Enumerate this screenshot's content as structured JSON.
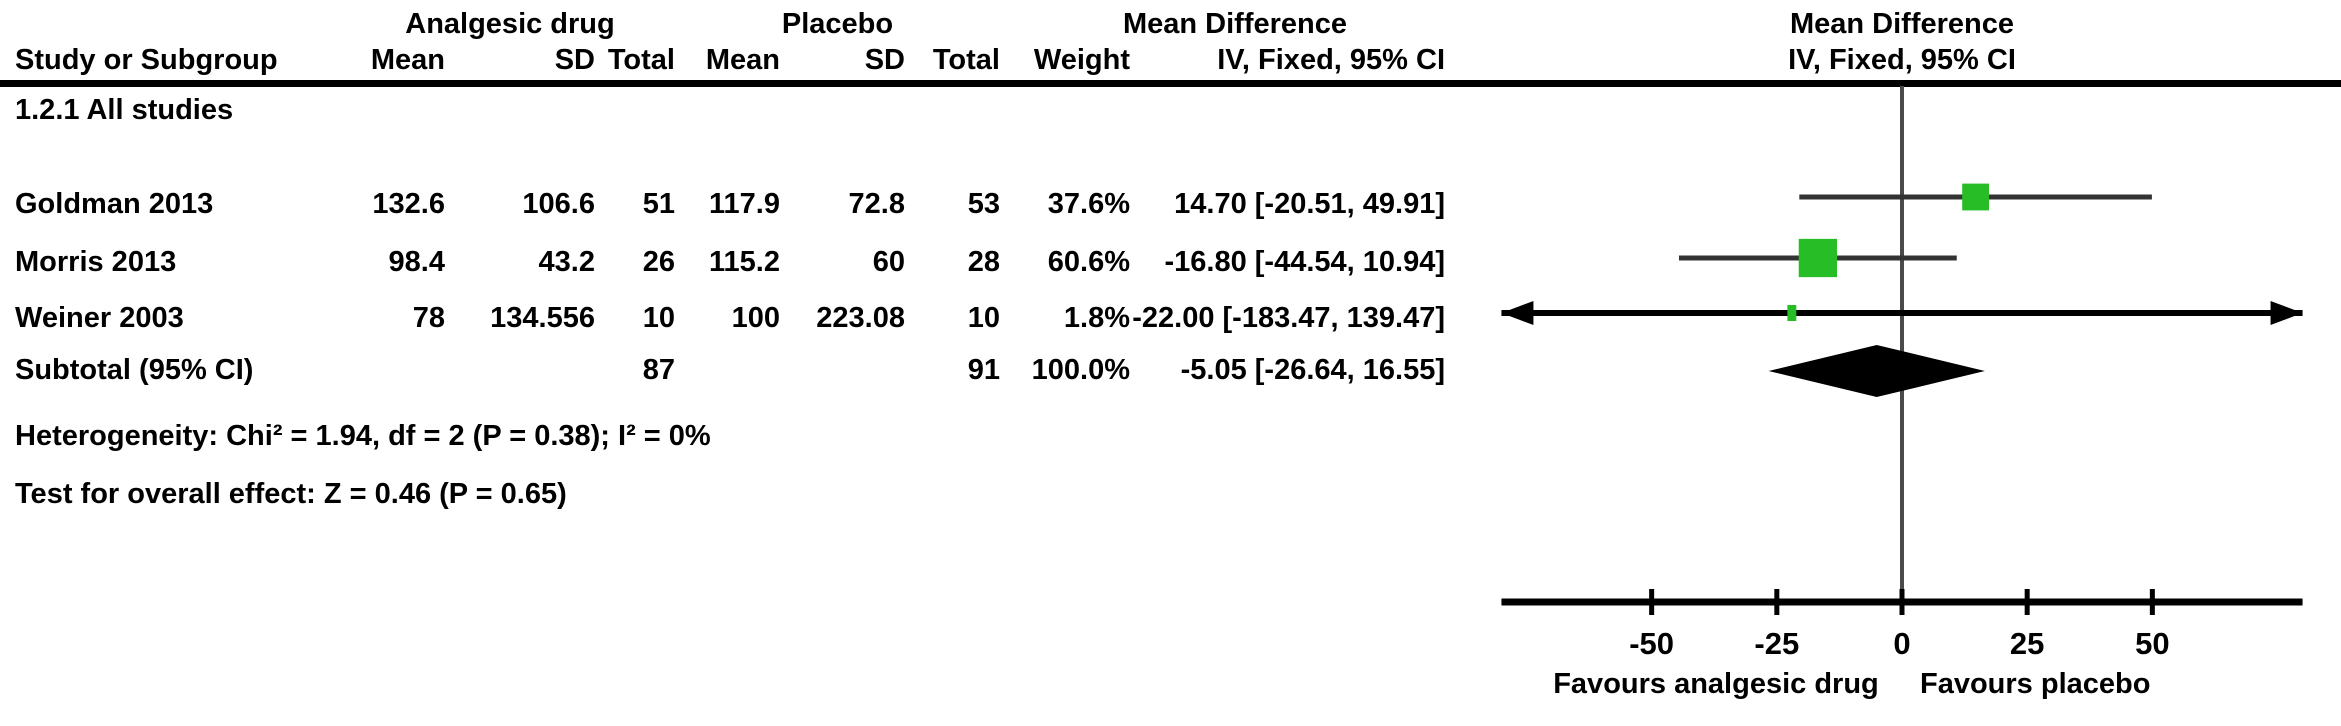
{
  "headers": {
    "group1": "Analgesic drug",
    "group2": "Placebo",
    "effect_left": "Mean Difference",
    "effect_right": "Mean Difference",
    "method_left": "IV, Fixed, 95% CI",
    "method_right": "IV, Fixed, 95% CI",
    "study": "Study or Subgroup",
    "mean": "Mean",
    "sd": "SD",
    "total": "Total",
    "weight": "Weight"
  },
  "subgroup_label": "1.2.1 All studies",
  "rows": [
    {
      "study": "Goldman 2013",
      "mean1": "132.6",
      "sd1": "106.6",
      "total1": "51",
      "mean2": "117.9",
      "sd2": "72.8",
      "total2": "53",
      "weight": "37.6%",
      "ci": "14.70 [-20.51, 49.91]"
    },
    {
      "study": "Morris 2013",
      "mean1": "98.4",
      "sd1": "43.2",
      "total1": "26",
      "mean2": "115.2",
      "sd2": "60",
      "total2": "28",
      "weight": "60.6%",
      "ci": "-16.80 [-44.54, 10.94]"
    },
    {
      "study": "Weiner 2003",
      "mean1": "78",
      "sd1": "134.556",
      "total1": "10",
      "mean2": "100",
      "sd2": "223.08",
      "total2": "10",
      "weight": "1.8%",
      "ci": "-22.00 [-183.47, 139.47]"
    }
  ],
  "subtotal": {
    "label": "Subtotal (95% CI)",
    "total1": "87",
    "total2": "91",
    "weight": "100.0%",
    "ci": "-5.05 [-26.64, 16.55]"
  },
  "footnotes": {
    "heterogeneity": "Heterogeneity: Chi² = 1.94, df = 2 (P = 0.38); I² = 0%",
    "overall_effect": "Test for overall effect: Z = 0.46 (P = 0.65)"
  },
  "colors": {
    "square_green": "#26bd26",
    "diamond_black": "#000000",
    "ci_line": "#333333",
    "zero_line": "#4a4a4a"
  },
  "chart_data": {
    "type": "forest",
    "title": "Mean Difference, IV, Fixed, 95% CI",
    "subgroup": "1.2.1 All studies",
    "studies": [
      {
        "label": "Goldman 2013",
        "md": 14.7,
        "ci_low": -20.51,
        "ci_high": 49.91,
        "weight_pct": 37.6
      },
      {
        "label": "Morris 2013",
        "md": -16.8,
        "ci_low": -44.54,
        "ci_high": 10.94,
        "weight_pct": 60.6
      },
      {
        "label": "Weiner 2003",
        "md": -22.0,
        "ci_low": -183.47,
        "ci_high": 139.47,
        "weight_pct": 1.8
      }
    ],
    "subtotal": {
      "label": "Subtotal (95% CI)",
      "md": -5.05,
      "ci_low": -26.64,
      "ci_high": 16.55,
      "weight_pct": 100.0
    },
    "heterogeneity": {
      "chi2": 1.94,
      "df": 2,
      "p": 0.38,
      "i2_pct": 0
    },
    "overall_effect": {
      "z": 0.46,
      "p": 0.65
    },
    "xlim": [
      -80,
      80
    ],
    "x_ticks": [
      -50,
      -25,
      0,
      25,
      50
    ],
    "xlabel_left": "Favours analgesic drug",
    "xlabel_right": "Favours placebo",
    "legend_position": "none",
    "grid": false
  }
}
